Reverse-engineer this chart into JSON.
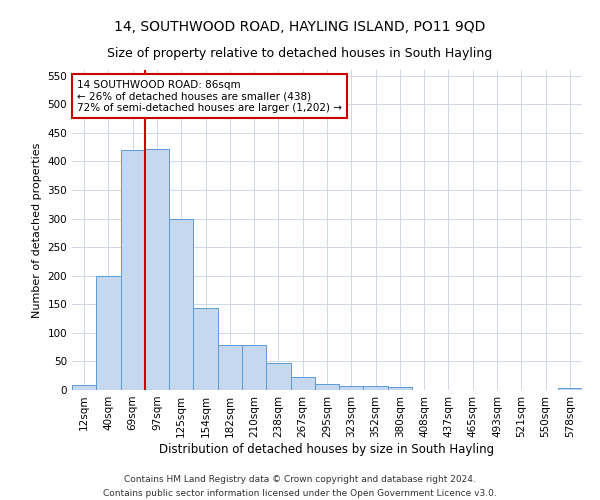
{
  "title": "14, SOUTHWOOD ROAD, HAYLING ISLAND, PO11 9QD",
  "subtitle": "Size of property relative to detached houses in South Hayling",
  "xlabel": "Distribution of detached houses by size in South Hayling",
  "ylabel": "Number of detached properties",
  "footer_line1": "Contains HM Land Registry data © Crown copyright and database right 2024.",
  "footer_line2": "Contains public sector information licensed under the Open Government Licence v3.0.",
  "categories": [
    "12sqm",
    "40sqm",
    "69sqm",
    "97sqm",
    "125sqm",
    "154sqm",
    "182sqm",
    "210sqm",
    "238sqm",
    "267sqm",
    "295sqm",
    "323sqm",
    "352sqm",
    "380sqm",
    "408sqm",
    "437sqm",
    "465sqm",
    "493sqm",
    "521sqm",
    "550sqm",
    "578sqm"
  ],
  "values": [
    8,
    200,
    420,
    422,
    300,
    143,
    78,
    78,
    48,
    22,
    10,
    7,
    7,
    6,
    0,
    0,
    0,
    0,
    0,
    0,
    4
  ],
  "bar_color": "#c5d8f0",
  "bar_edge_color": "#5b9bd5",
  "grid_color": "#d0d8e8",
  "vline_x_index": 2,
  "vline_color": "#cc0000",
  "annotation_text": "14 SOUTHWOOD ROAD: 86sqm\n← 26% of detached houses are smaller (438)\n72% of semi-detached houses are larger (1,202) →",
  "annotation_box_color": "#ffffff",
  "annotation_box_edge": "#cc0000",
  "ylim": [
    0,
    560
  ],
  "yticks": [
    0,
    50,
    100,
    150,
    200,
    250,
    300,
    350,
    400,
    450,
    500,
    550
  ],
  "title_fontsize": 10,
  "subtitle_fontsize": 9,
  "xlabel_fontsize": 8.5,
  "ylabel_fontsize": 8,
  "tick_fontsize": 7.5,
  "annotation_fontsize": 7.5,
  "footer_fontsize": 6.5,
  "bg_color": "#ffffff"
}
